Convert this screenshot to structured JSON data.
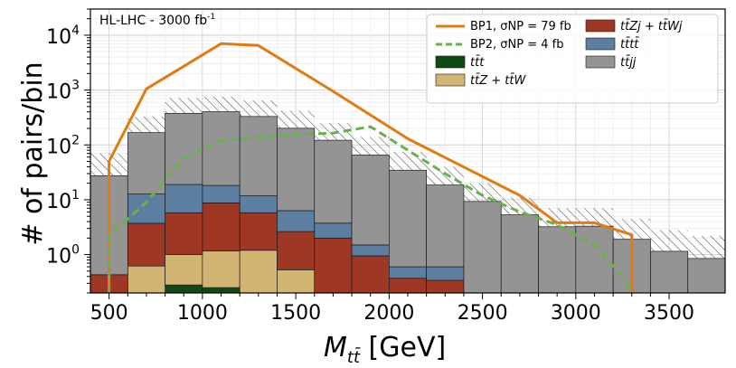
{
  "chart_data": {
    "type": "bar",
    "stacked": true,
    "yscale": "log",
    "annotation": "HL-LHC - 3000 fb",
    "annotation_superscript": "-1",
    "xlabel_main": "M",
    "xlabel_sub": "tt̄",
    "xlabel_unit": " [GeV]",
    "ylabel": "# of pairs/bin",
    "xlim": [
      400,
      3800
    ],
    "ylim": [
      0.2,
      30000
    ],
    "x_ticks": [
      500,
      1000,
      1500,
      2000,
      2500,
      3000,
      3500
    ],
    "x_tick_labels": [
      "500",
      "1000",
      "1500",
      "2000",
      "2500",
      "3000",
      "3500"
    ],
    "y_ticks": [
      1,
      10,
      100,
      1000,
      10000
    ],
    "y_tick_labels": [
      {
        "base": "10",
        "exp": "0"
      },
      {
        "base": "10",
        "exp": "1"
      },
      {
        "base": "10",
        "exp": "2"
      },
      {
        "base": "10",
        "exp": "3"
      },
      {
        "base": "10",
        "exp": "4"
      }
    ],
    "bin_edges": [
      400,
      600,
      800,
      1000,
      1200,
      1400,
      1600,
      1800,
      2000,
      2200,
      2400,
      2600,
      2800,
      3000,
      3200,
      3400,
      3600,
      3800
    ],
    "stack": [
      {
        "name": "tt̄t",
        "legend_label": "tt̄t",
        "color": "#0f4a14",
        "values": [
          0,
          0,
          0.28,
          0.25,
          0,
          0,
          0,
          0,
          0,
          0,
          0,
          0,
          0,
          0,
          0,
          0,
          0
        ]
      },
      {
        "name": "tt̄Z + tt̄W",
        "legend_label": "tt̄Z + tt̄W",
        "color": "#d2b473",
        "values": [
          0,
          0.62,
          0.72,
          0.92,
          1.2,
          0.53,
          0,
          0,
          0,
          0,
          0,
          0,
          0,
          0,
          0,
          0,
          0
        ]
      },
      {
        "name": "tt̄Zj + tt̄Wj",
        "legend_label": "tt̄Zj + tt̄Wj",
        "color": "#9e3724",
        "values": [
          0.43,
          3.1,
          4.8,
          7.6,
          4.6,
          2.1,
          2.0,
          0.95,
          0.37,
          0.34,
          0,
          0,
          0,
          0,
          0,
          0,
          0
        ]
      },
      {
        "name": "tt̄tt̄",
        "legend_label": "tt̄tt̄",
        "color": "#5b7ea1",
        "values": [
          0,
          9.0,
          13.2,
          9.5,
          6.0,
          3.7,
          1.75,
          0.55,
          0.23,
          0.26,
          0.02,
          0.02,
          0.02,
          0,
          0,
          0,
          0
        ]
      },
      {
        "name": "tt̄jj",
        "legend_label": "tt̄jj",
        "color": "#949494",
        "values": [
          27,
          155,
          358,
          385,
          318,
          195,
          118,
          64,
          34,
          18,
          9.3,
          5.3,
          3.2,
          3.3,
          1.9,
          1.15,
          0.85
        ]
      }
    ],
    "uncertainty_band": {
      "name": "total uncertainty (hatched)",
      "upper": [
        70,
        330,
        720,
        760,
        650,
        420,
        250,
        140,
        75,
        40,
        20,
        11,
        7,
        7,
        4.5,
        2.8,
        2.2
      ]
    },
    "lines": [
      {
        "name": "BP1",
        "legend_label": "BP1, σNP = 79 fb",
        "color": "#e07b10",
        "style": "solid",
        "points": [
          [
            500,
            0.2
          ],
          [
            500,
            50
          ],
          [
            700,
            1050
          ],
          [
            1100,
            7000
          ],
          [
            1300,
            6500
          ],
          [
            1700,
            950
          ],
          [
            2100,
            130
          ],
          [
            2700,
            12
          ],
          [
            2900,
            3.8
          ],
          [
            3100,
            3.8
          ],
          [
            3300,
            2.3
          ],
          [
            3300,
            0.2
          ]
        ]
      },
      {
        "name": "BP2",
        "legend_label": "BP2, σNP = 4 fb",
        "color": "#6ab04c",
        "style": "dashed",
        "points": [
          [
            500,
            0.2
          ],
          [
            500,
            2.2
          ],
          [
            700,
            9
          ],
          [
            900,
            58
          ],
          [
            1100,
            118
          ],
          [
            1300,
            138
          ],
          [
            1500,
            152
          ],
          [
            1700,
            165
          ],
          [
            1900,
            215
          ],
          [
            2100,
            80
          ],
          [
            2300,
            30
          ],
          [
            2500,
            12
          ],
          [
            2700,
            6
          ],
          [
            2900,
            3.5
          ],
          [
            3100,
            1.5
          ],
          [
            3250,
            0.4
          ],
          [
            3300,
            0.2
          ]
        ]
      }
    ],
    "legend_position": "top-right"
  }
}
